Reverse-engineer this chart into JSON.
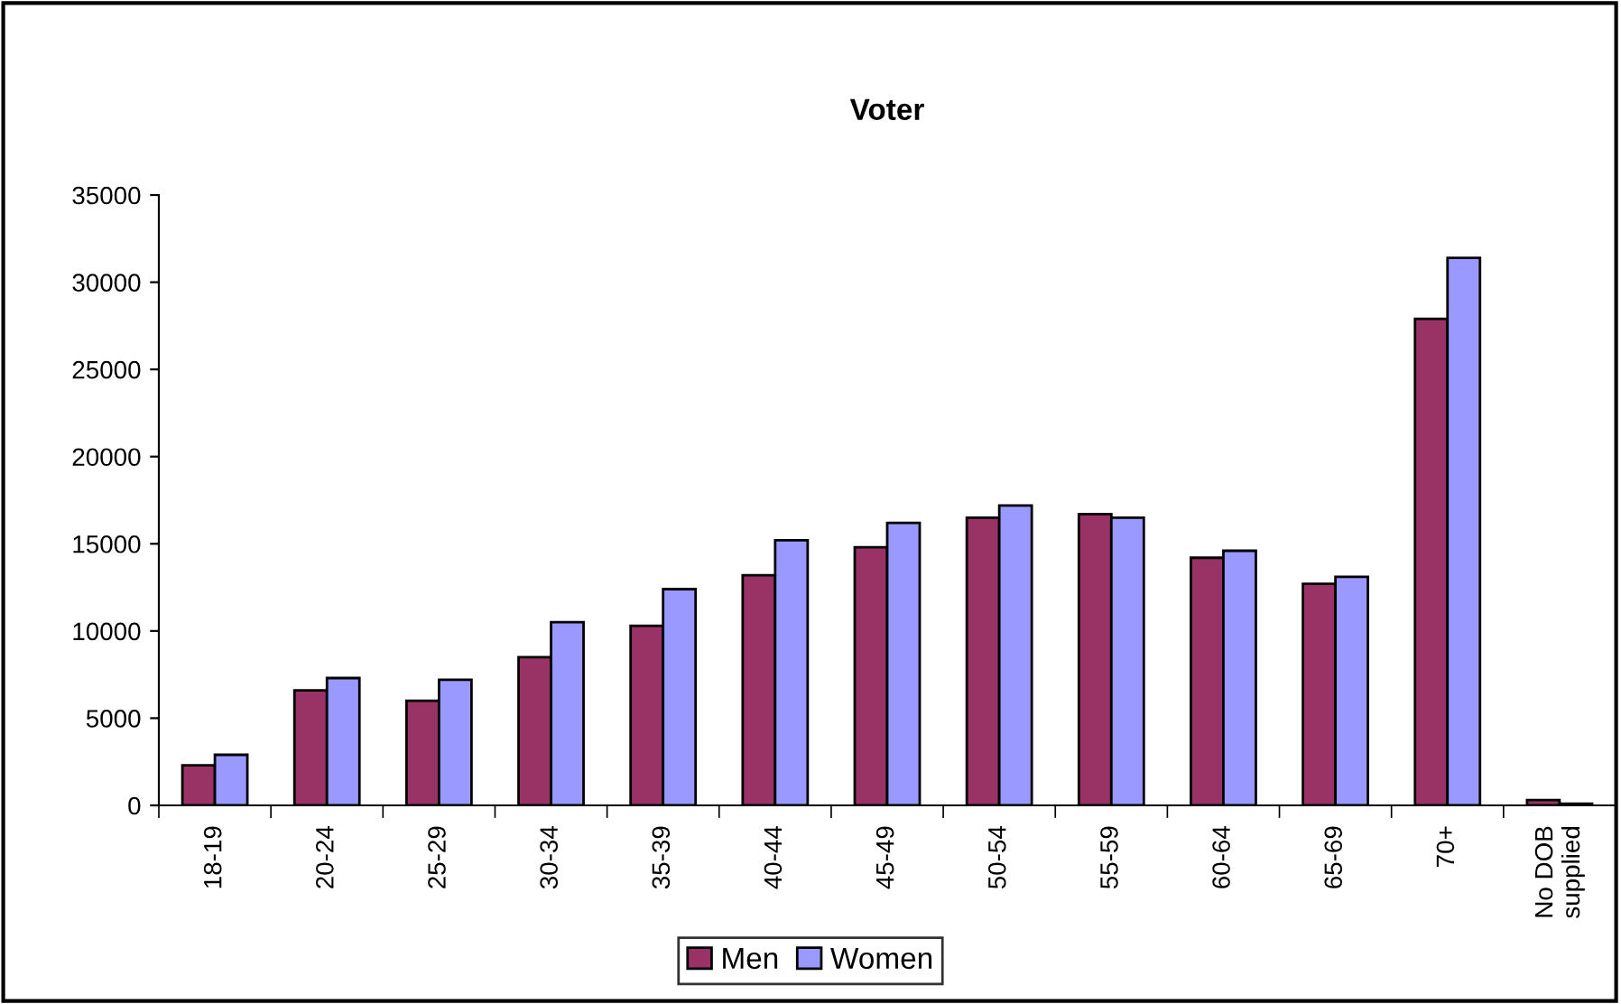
{
  "chart_data": {
    "type": "bar",
    "title": "Voter",
    "categories": [
      "18-19",
      "20-24",
      "25-29",
      "30-34",
      "35-39",
      "40-44",
      "45-49",
      "50-54",
      "55-59",
      "60-64",
      "65-69",
      "70+",
      "No DOB\nsupplied"
    ],
    "series": [
      {
        "name": "Men",
        "color": "#993366",
        "values": [
          2300,
          6600,
          6000,
          8500,
          10300,
          13200,
          14800,
          16500,
          16700,
          14200,
          12700,
          27900,
          300
        ]
      },
      {
        "name": "Women",
        "color": "#9999ff",
        "values": [
          2900,
          7300,
          7200,
          10500,
          12400,
          15200,
          16200,
          17200,
          16500,
          14600,
          13100,
          31400,
          100
        ]
      }
    ],
    "ylim": [
      0,
      35000
    ],
    "yticks": [
      0,
      5000,
      10000,
      15000,
      20000,
      25000,
      30000,
      35000
    ],
    "grid": false,
    "legend": "bottom"
  }
}
